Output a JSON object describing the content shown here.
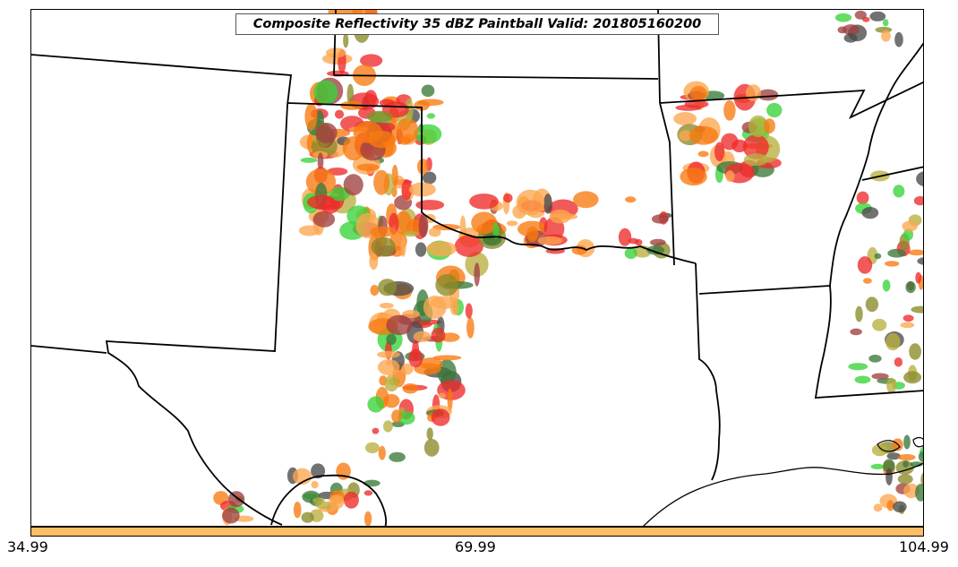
{
  "title": "Composite Reflectivity 35 dBZ Paintball Valid: 201805160200",
  "colorbar": {
    "color": "#fdbf65",
    "ticks": [
      "34.99",
      "69.99",
      "104.99"
    ]
  },
  "legend_palette": {
    "green": "#39d43a",
    "orange": "#f97a10",
    "light_orange": "#fda650",
    "red": "#ee2a2a",
    "olive": "#8a8a2a",
    "dark_gray": "#4a4a4a",
    "maroon": "#a04040",
    "yellow_olive": "#b8b040",
    "dark_green": "#3a7a3a"
  },
  "map": {
    "boundary_color": "#000000",
    "background": "#ffffff"
  }
}
